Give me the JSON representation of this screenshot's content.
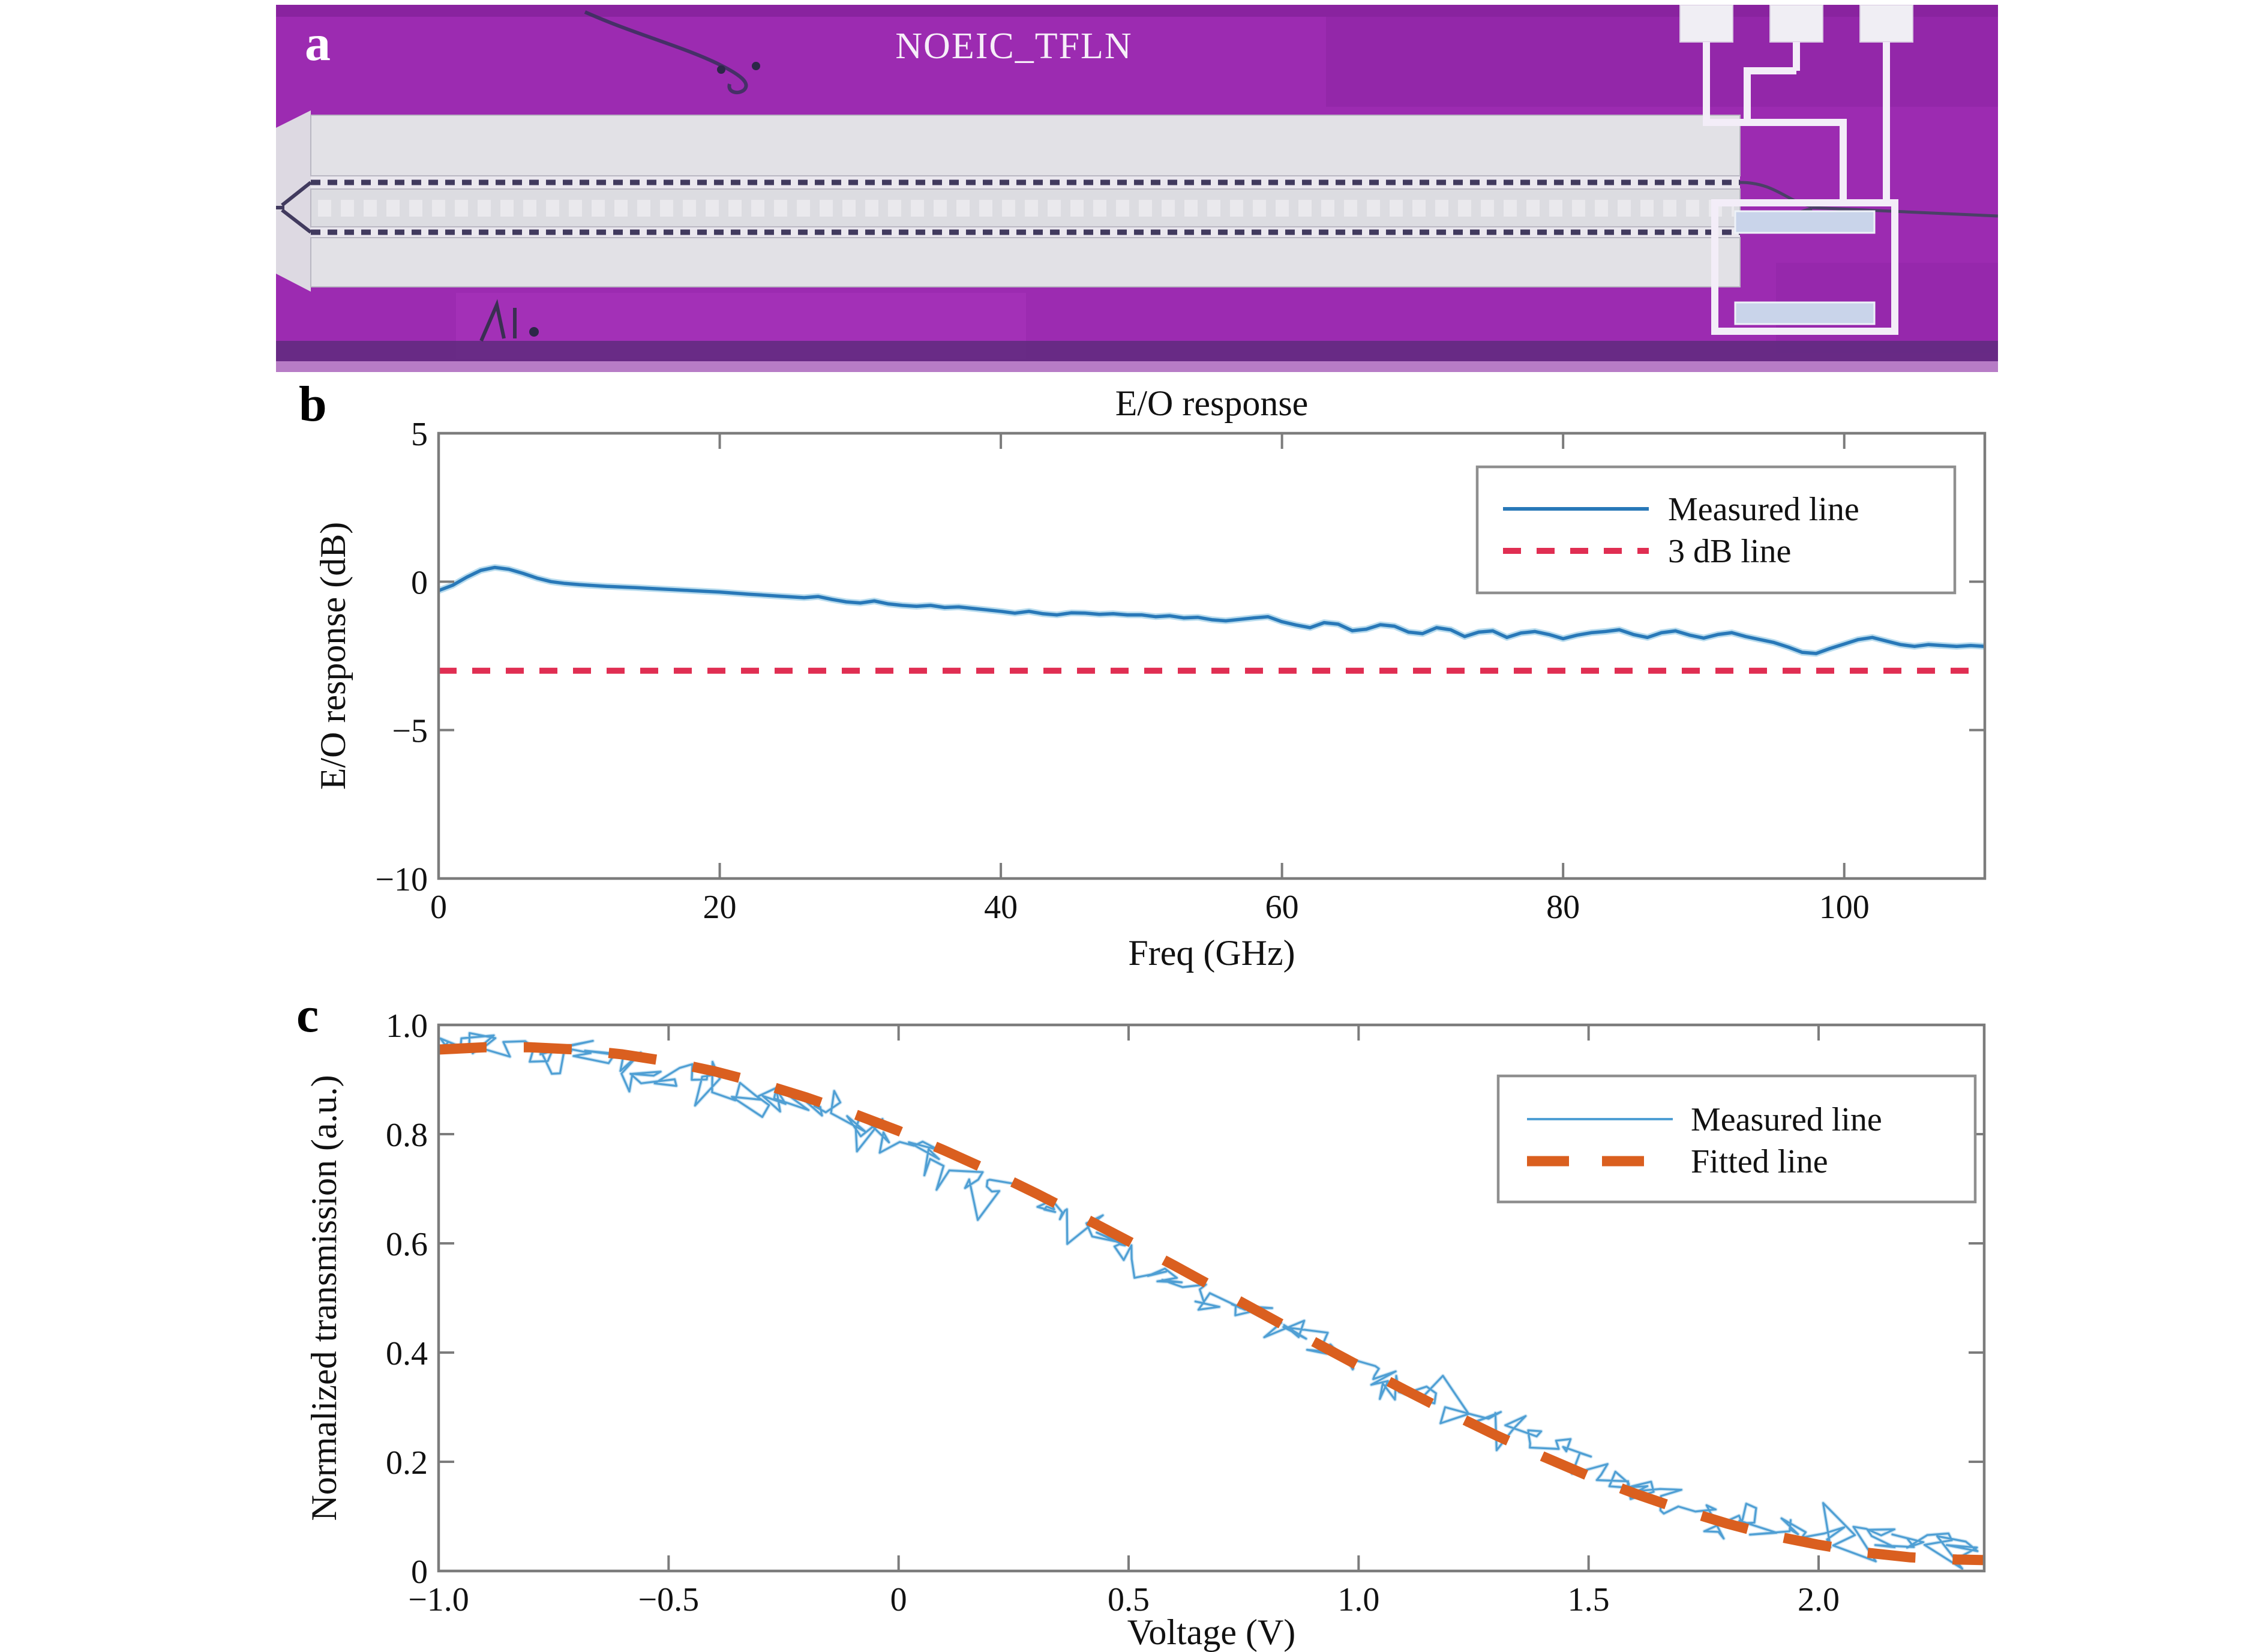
{
  "figure": {
    "panels": {
      "a": {
        "label": "a",
        "title": "NOEIC_TFLN",
        "type": "chip-micrograph",
        "colors": {
          "background_purple": "#9c2bb1",
          "electrode_gray": "#e2e1e6",
          "waveguide_dark": "#413a5e",
          "trace_white": "#f3edf8",
          "pad_white": "#f0eef4",
          "terminator_blue": "#c9d4ea"
        }
      },
      "b": {
        "label": "b"
      },
      "c": {
        "label": "c"
      }
    }
  },
  "chart_data": [
    {
      "id": "b",
      "type": "line",
      "title": "E/O response",
      "xlabel": "Freq (GHz)",
      "ylabel": "E/O response (dB)",
      "xlim": [
        0,
        110
      ],
      "ylim": [
        -10,
        5
      ],
      "grid": false,
      "axis_color": "#7c7c7c",
      "xticks": {
        "values": [
          0,
          20,
          40,
          60,
          80,
          100
        ],
        "labels": [
          "0",
          "20",
          "40",
          "60",
          "80",
          "100"
        ]
      },
      "yticks": {
        "values": [
          5,
          0,
          -5,
          -10
        ],
        "labels": [
          "5",
          "0",
          "−5",
          "−10"
        ]
      },
      "legend": {
        "position": "upper right",
        "entries": [
          "Measured line",
          "3 dB line"
        ]
      },
      "series": [
        {
          "name": "Measured line",
          "style": "solid",
          "color": "#2878b8",
          "halo": "#b9dcee",
          "points": [
            [
              0,
              -0.3
            ],
            [
              1,
              -0.12
            ],
            [
              2,
              0.15
            ],
            [
              3,
              0.38
            ],
            [
              4,
              0.48
            ],
            [
              5,
              0.42
            ],
            [
              6,
              0.28
            ],
            [
              7,
              0.12
            ],
            [
              8,
              0.0
            ],
            [
              9,
              -0.06
            ],
            [
              10,
              -0.1
            ],
            [
              12,
              -0.16
            ],
            [
              14,
              -0.2
            ],
            [
              16,
              -0.25
            ],
            [
              18,
              -0.3
            ],
            [
              20,
              -0.35
            ],
            [
              22,
              -0.42
            ],
            [
              24,
              -0.48
            ],
            [
              26,
              -0.54
            ],
            [
              27,
              -0.5
            ],
            [
              28,
              -0.6
            ],
            [
              29,
              -0.68
            ],
            [
              30,
              -0.72
            ],
            [
              31,
              -0.65
            ],
            [
              32,
              -0.75
            ],
            [
              33,
              -0.8
            ],
            [
              34,
              -0.83
            ],
            [
              35,
              -0.8
            ],
            [
              36,
              -0.87
            ],
            [
              37,
              -0.85
            ],
            [
              38,
              -0.9
            ],
            [
              39,
              -0.95
            ],
            [
              40,
              -1.0
            ],
            [
              41,
              -1.06
            ],
            [
              42,
              -1.0
            ],
            [
              43,
              -1.08
            ],
            [
              44,
              -1.12
            ],
            [
              45,
              -1.05
            ],
            [
              46,
              -1.06
            ],
            [
              47,
              -1.1
            ],
            [
              48,
              -1.08
            ],
            [
              49,
              -1.12
            ],
            [
              50,
              -1.12
            ],
            [
              51,
              -1.18
            ],
            [
              52,
              -1.15
            ],
            [
              53,
              -1.22
            ],
            [
              54,
              -1.2
            ],
            [
              55,
              -1.28
            ],
            [
              56,
              -1.32
            ],
            [
              57,
              -1.27
            ],
            [
              58,
              -1.22
            ],
            [
              59,
              -1.18
            ],
            [
              60,
              -1.35
            ],
            [
              61,
              -1.46
            ],
            [
              62,
              -1.55
            ],
            [
              63,
              -1.38
            ],
            [
              64,
              -1.43
            ],
            [
              65,
              -1.65
            ],
            [
              66,
              -1.6
            ],
            [
              67,
              -1.45
            ],
            [
              68,
              -1.5
            ],
            [
              69,
              -1.7
            ],
            [
              70,
              -1.75
            ],
            [
              71,
              -1.55
            ],
            [
              72,
              -1.62
            ],
            [
              73,
              -1.85
            ],
            [
              74,
              -1.7
            ],
            [
              75,
              -1.66
            ],
            [
              76,
              -1.88
            ],
            [
              77,
              -1.73
            ],
            [
              78,
              -1.68
            ],
            [
              79,
              -1.78
            ],
            [
              80,
              -1.92
            ],
            [
              81,
              -1.8
            ],
            [
              82,
              -1.72
            ],
            [
              83,
              -1.68
            ],
            [
              84,
              -1.62
            ],
            [
              85,
              -1.78
            ],
            [
              86,
              -1.88
            ],
            [
              87,
              -1.72
            ],
            [
              88,
              -1.66
            ],
            [
              89,
              -1.8
            ],
            [
              90,
              -1.9
            ],
            [
              91,
              -1.78
            ],
            [
              92,
              -1.72
            ],
            [
              93,
              -1.85
            ],
            [
              94,
              -1.95
            ],
            [
              95,
              -2.05
            ],
            [
              96,
              -2.2
            ],
            [
              97,
              -2.38
            ],
            [
              98,
              -2.42
            ],
            [
              99,
              -2.25
            ],
            [
              100,
              -2.1
            ],
            [
              101,
              -1.95
            ],
            [
              102,
              -1.88
            ],
            [
              103,
              -2.0
            ],
            [
              104,
              -2.12
            ],
            [
              105,
              -2.18
            ],
            [
              106,
              -2.12
            ],
            [
              107,
              -2.15
            ],
            [
              108,
              -2.18
            ],
            [
              109,
              -2.15
            ],
            [
              110,
              -2.18
            ]
          ]
        },
        {
          "name": "3 dB line",
          "style": "dashed",
          "color": "#e02e52",
          "points": [
            [
              0,
              -3
            ],
            [
              110,
              -3
            ]
          ]
        }
      ]
    },
    {
      "id": "c",
      "type": "line",
      "title": "",
      "xlabel": "Voltage (V)",
      "ylabel": "Normalized transmission (a.u.)",
      "xlim": [
        -1,
        2.36
      ],
      "ylim": [
        0,
        1
      ],
      "grid": false,
      "axis_color": "#7c7c7c",
      "xticks": {
        "values": [
          -1,
          -0.5,
          0,
          0.5,
          1,
          1.5,
          2
        ],
        "labels": [
          "−1.0",
          "−0.5",
          "0",
          "0.5",
          "1.0",
          "1.5",
          "2.0"
        ]
      },
      "yticks": {
        "values": [
          0,
          0.2,
          0.4,
          0.6,
          0.8,
          1
        ],
        "labels": [
          "0",
          "0.2",
          "0.4",
          "0.6",
          "0.8",
          "1.0"
        ]
      },
      "legend": {
        "position": "upper right",
        "entries": [
          "Measured line",
          "Fitted line"
        ]
      },
      "series": [
        {
          "name": "Measured line",
          "style": "noisy",
          "color": "#4f9fd4",
          "halo": "#cfe6f4",
          "base": "Fitted line",
          "noise": {
            "seed": 11,
            "step": 0.011,
            "amp_y": 0.02,
            "wander": 0.012,
            "amp_x": 0.045,
            "spike_prob": 0.1,
            "spike_amp": 0.05
          }
        },
        {
          "name": "Fitted line",
          "style": "dashed-thick",
          "color": "#da5f1f",
          "points": [
            [
              -1,
              0.955
            ],
            [
              -0.9,
              0.959
            ],
            [
              -0.8,
              0.959
            ],
            [
              -0.7,
              0.955
            ],
            [
              -0.6,
              0.946
            ],
            [
              -0.5,
              0.933
            ],
            [
              -0.4,
              0.915
            ],
            [
              -0.3,
              0.893
            ],
            [
              -0.2,
              0.867
            ],
            [
              -0.1,
              0.838
            ],
            [
              0,
              0.806
            ],
            [
              0.1,
              0.77
            ],
            [
              0.2,
              0.732
            ],
            [
              0.3,
              0.691
            ],
            [
              0.4,
              0.648
            ],
            [
              0.5,
              0.604
            ],
            [
              0.6,
              0.559
            ],
            [
              0.7,
              0.513
            ],
            [
              0.8,
              0.467
            ],
            [
              0.9,
              0.421
            ],
            [
              1.0,
              0.376
            ],
            [
              1.1,
              0.332
            ],
            [
              1.2,
              0.289
            ],
            [
              1.3,
              0.248
            ],
            [
              1.4,
              0.21
            ],
            [
              1.5,
              0.174
            ],
            [
              1.6,
              0.142
            ],
            [
              1.7,
              0.113
            ],
            [
              1.8,
              0.087
            ],
            [
              1.9,
              0.065
            ],
            [
              2.0,
              0.048
            ],
            [
              2.1,
              0.034
            ],
            [
              2.2,
              0.025
            ],
            [
              2.3,
              0.021
            ],
            [
              2.36,
              0.02
            ]
          ]
        }
      ]
    }
  ]
}
